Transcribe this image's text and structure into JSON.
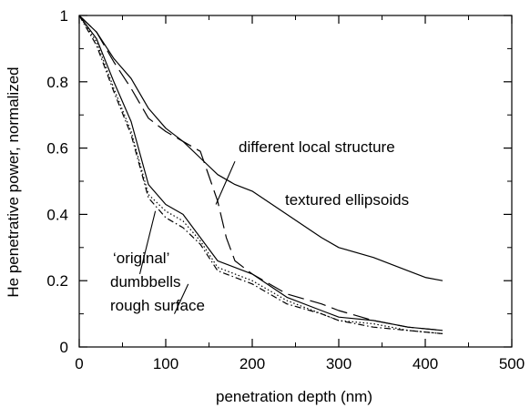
{
  "chart_data": {
    "type": "line",
    "title": "",
    "xlabel": "penetration depth (nm)",
    "ylabel": "He penetrative power, normalized",
    "xlim": [
      0,
      500
    ],
    "ylim": [
      0,
      1
    ],
    "xticks": [
      0,
      100,
      200,
      300,
      400,
      500
    ],
    "yticks": [
      0,
      0.2,
      0.4,
      0.6,
      0.8,
      1
    ],
    "xtick_labels": [
      "0",
      "100",
      "200",
      "300",
      "400",
      "500"
    ],
    "ytick_labels": [
      "0",
      "0.2",
      "0.4",
      "0.6",
      "0.8",
      "1"
    ],
    "grid": false,
    "legend": "none",
    "series": [
      {
        "style": "solid",
        "x": [
          0,
          20,
          40,
          60,
          80,
          100,
          120,
          140,
          160,
          180,
          200,
          240,
          280,
          300,
          340,
          380,
          400,
          420
        ],
        "y": [
          1.0,
          0.95,
          0.87,
          0.81,
          0.72,
          0.66,
          0.62,
          0.57,
          0.52,
          0.49,
          0.47,
          0.4,
          0.33,
          0.3,
          0.27,
          0.23,
          0.21,
          0.2
        ]
      },
      {
        "style": "long-dash",
        "x": [
          0,
          20,
          40,
          60,
          80,
          100,
          120,
          140,
          160,
          170,
          180,
          200,
          240,
          280,
          300,
          340,
          380,
          420
        ],
        "y": [
          1.0,
          0.95,
          0.86,
          0.78,
          0.69,
          0.65,
          0.62,
          0.59,
          0.44,
          0.33,
          0.26,
          0.22,
          0.16,
          0.13,
          0.11,
          0.08,
          0.06,
          0.05
        ]
      },
      {
        "style": "solid",
        "x": [
          0,
          20,
          40,
          60,
          80,
          100,
          120,
          140,
          160,
          200,
          240,
          280,
          300,
          340,
          380,
          420
        ],
        "y": [
          1.0,
          0.93,
          0.8,
          0.68,
          0.49,
          0.43,
          0.4,
          0.33,
          0.26,
          0.22,
          0.15,
          0.11,
          0.09,
          0.08,
          0.06,
          0.05
        ]
      },
      {
        "style": "dotted",
        "x": [
          0,
          20,
          40,
          60,
          80,
          100,
          120,
          140,
          160,
          200,
          240,
          280,
          300,
          340,
          380,
          420
        ],
        "y": [
          1.0,
          0.92,
          0.78,
          0.65,
          0.46,
          0.41,
          0.38,
          0.32,
          0.24,
          0.2,
          0.14,
          0.1,
          0.08,
          0.07,
          0.05,
          0.04
        ]
      },
      {
        "style": "dash-dot",
        "x": [
          0,
          20,
          40,
          60,
          80,
          100,
          120,
          140,
          160,
          200,
          240,
          280,
          300,
          340,
          380,
          420
        ],
        "y": [
          1.0,
          0.91,
          0.77,
          0.64,
          0.45,
          0.39,
          0.36,
          0.31,
          0.23,
          0.19,
          0.13,
          0.1,
          0.08,
          0.06,
          0.05,
          0.04
        ]
      }
    ],
    "annotations": [
      {
        "text": "different local structure",
        "x": 127,
        "y": 0.59
      },
      {
        "text": "textured ellipsoids",
        "x": 231,
        "y": 0.43
      },
      {
        "text": "‘original’",
        "x": 35,
        "y": 0.115
      },
      {
        "text": "dumbbells",
        "x": 35,
        "y": 0.185
      },
      {
        "text": "rough surface",
        "x": 35,
        "y": 0.115
      }
    ]
  }
}
